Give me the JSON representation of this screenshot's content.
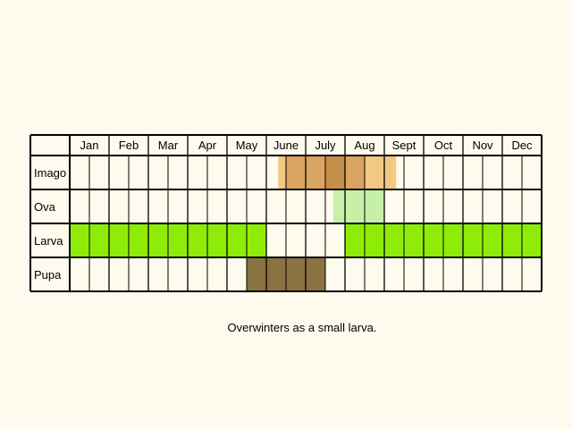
{
  "diagram": {
    "months": [
      "Jan",
      "Feb",
      "Mar",
      "Apr",
      "May",
      "June",
      "July",
      "Aug",
      "Sept",
      "Oct",
      "Nov",
      "Dec"
    ],
    "stages": [
      {
        "label": "Imago",
        "cells": [
          {
            "from": 10.6,
            "to": 11,
            "color": "#f3c882"
          },
          {
            "from": 11,
            "to": 13,
            "color": "#d9a45f"
          },
          {
            "from": 13,
            "to": 14,
            "color": "#c48f48"
          },
          {
            "from": 14,
            "to": 15,
            "color": "#d9a45f"
          },
          {
            "from": 15,
            "to": 16.6,
            "color": "#f3c882"
          }
        ]
      },
      {
        "label": "Ova",
        "cells": [
          {
            "from": 13.4,
            "to": 16,
            "color": "#c6f0a8"
          }
        ]
      },
      {
        "label": "Larva",
        "cells": [
          {
            "from": 0,
            "to": 10,
            "color": "#8fec09"
          },
          {
            "from": 14,
            "to": 24,
            "color": "#8fec09"
          }
        ]
      },
      {
        "label": "Pupa",
        "cells": [
          {
            "from": 9,
            "to": 13,
            "color": "#8a7340"
          }
        ]
      }
    ],
    "note": "Overwinters as a small larva."
  },
  "colors": {
    "background": "#fdfbee",
    "grid": "#000000"
  }
}
